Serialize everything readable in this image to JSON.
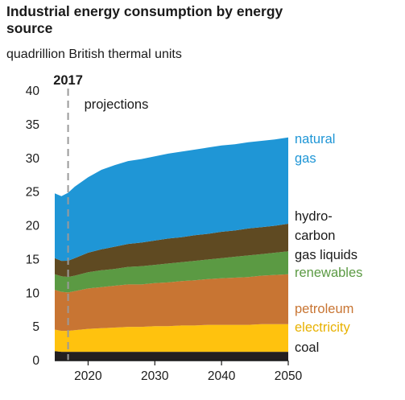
{
  "chart_data": {
    "type": "area",
    "stacked": true,
    "title": "Industrial energy consumption by energy source",
    "subtitle": "quadrillion British thermal units",
    "x": [
      2015,
      2016,
      2017,
      2018,
      2020,
      2022,
      2024,
      2026,
      2028,
      2030,
      2032,
      2034,
      2036,
      2038,
      2040,
      2042,
      2044,
      2046,
      2048,
      2050
    ],
    "x_ticks": [
      2020,
      2030,
      2040,
      2050
    ],
    "ylim": [
      0,
      40
    ],
    "y_ticks": [
      0,
      5,
      10,
      15,
      20,
      25,
      30,
      35,
      40
    ],
    "grid": false,
    "annotations": {
      "year_marker_label": "2017",
      "year_marker_value": 2017,
      "projections_label": "projections"
    },
    "series": [
      {
        "name": "coal",
        "color": "#231f20",
        "values": [
          1.4,
          1.3,
          1.3,
          1.3,
          1.3,
          1.3,
          1.3,
          1.3,
          1.3,
          1.3,
          1.3,
          1.3,
          1.3,
          1.3,
          1.3,
          1.3,
          1.3,
          1.3,
          1.3,
          1.3
        ]
      },
      {
        "name": "electricity",
        "color": "#ffc20e",
        "values": [
          3.2,
          3.1,
          3.1,
          3.2,
          3.4,
          3.5,
          3.6,
          3.7,
          3.7,
          3.8,
          3.8,
          3.9,
          3.9,
          4.0,
          4.0,
          4.0,
          4.0,
          4.1,
          4.1,
          4.1
        ]
      },
      {
        "name": "petroleum",
        "color": "#c87533",
        "values": [
          5.9,
          5.8,
          5.7,
          5.8,
          6.0,
          6.1,
          6.2,
          6.3,
          6.3,
          6.4,
          6.5,
          6.6,
          6.7,
          6.8,
          6.9,
          7.0,
          7.1,
          7.2,
          7.3,
          7.4
        ]
      },
      {
        "name": "renewables",
        "color": "#5b9a43",
        "values": [
          2.3,
          2.3,
          2.3,
          2.3,
          2.4,
          2.5,
          2.5,
          2.6,
          2.7,
          2.7,
          2.8,
          2.8,
          2.9,
          2.9,
          3.0,
          3.1,
          3.2,
          3.2,
          3.3,
          3.4
        ]
      },
      {
        "name": "hydro-carbon gas liquids",
        "color": "#5f4a22",
        "values": [
          2.4,
          2.3,
          2.4,
          2.6,
          2.9,
          3.1,
          3.3,
          3.4,
          3.5,
          3.6,
          3.7,
          3.7,
          3.8,
          3.8,
          3.9,
          3.9,
          4.0,
          4.0,
          4.0,
          4.1
        ]
      },
      {
        "name": "natural gas",
        "color": "#1f96d6",
        "values": [
          9.6,
          9.6,
          10.1,
          10.6,
          11.2,
          11.8,
          12.1,
          12.3,
          12.4,
          12.5,
          12.6,
          12.7,
          12.7,
          12.8,
          12.8,
          12.8,
          12.8,
          12.8,
          12.8,
          12.8
        ]
      }
    ],
    "legend_labels": [
      {
        "key": "natural_gas",
        "lines": [
          "natural",
          "gas"
        ],
        "color": "#1f96d6"
      },
      {
        "key": "hgl",
        "lines": [
          "hydro-",
          "carbon",
          "gas liquids"
        ],
        "color": "#1a1a1a"
      },
      {
        "key": "renewables",
        "lines": [
          "renewables"
        ],
        "color": "#5b9a43"
      },
      {
        "key": "petroleum",
        "lines": [
          "petroleum"
        ],
        "color": "#c87533"
      },
      {
        "key": "electricity",
        "lines": [
          "electricity"
        ],
        "color": "#e8b100"
      },
      {
        "key": "coal",
        "lines": [
          "coal"
        ],
        "color": "#1a1a1a"
      }
    ]
  }
}
